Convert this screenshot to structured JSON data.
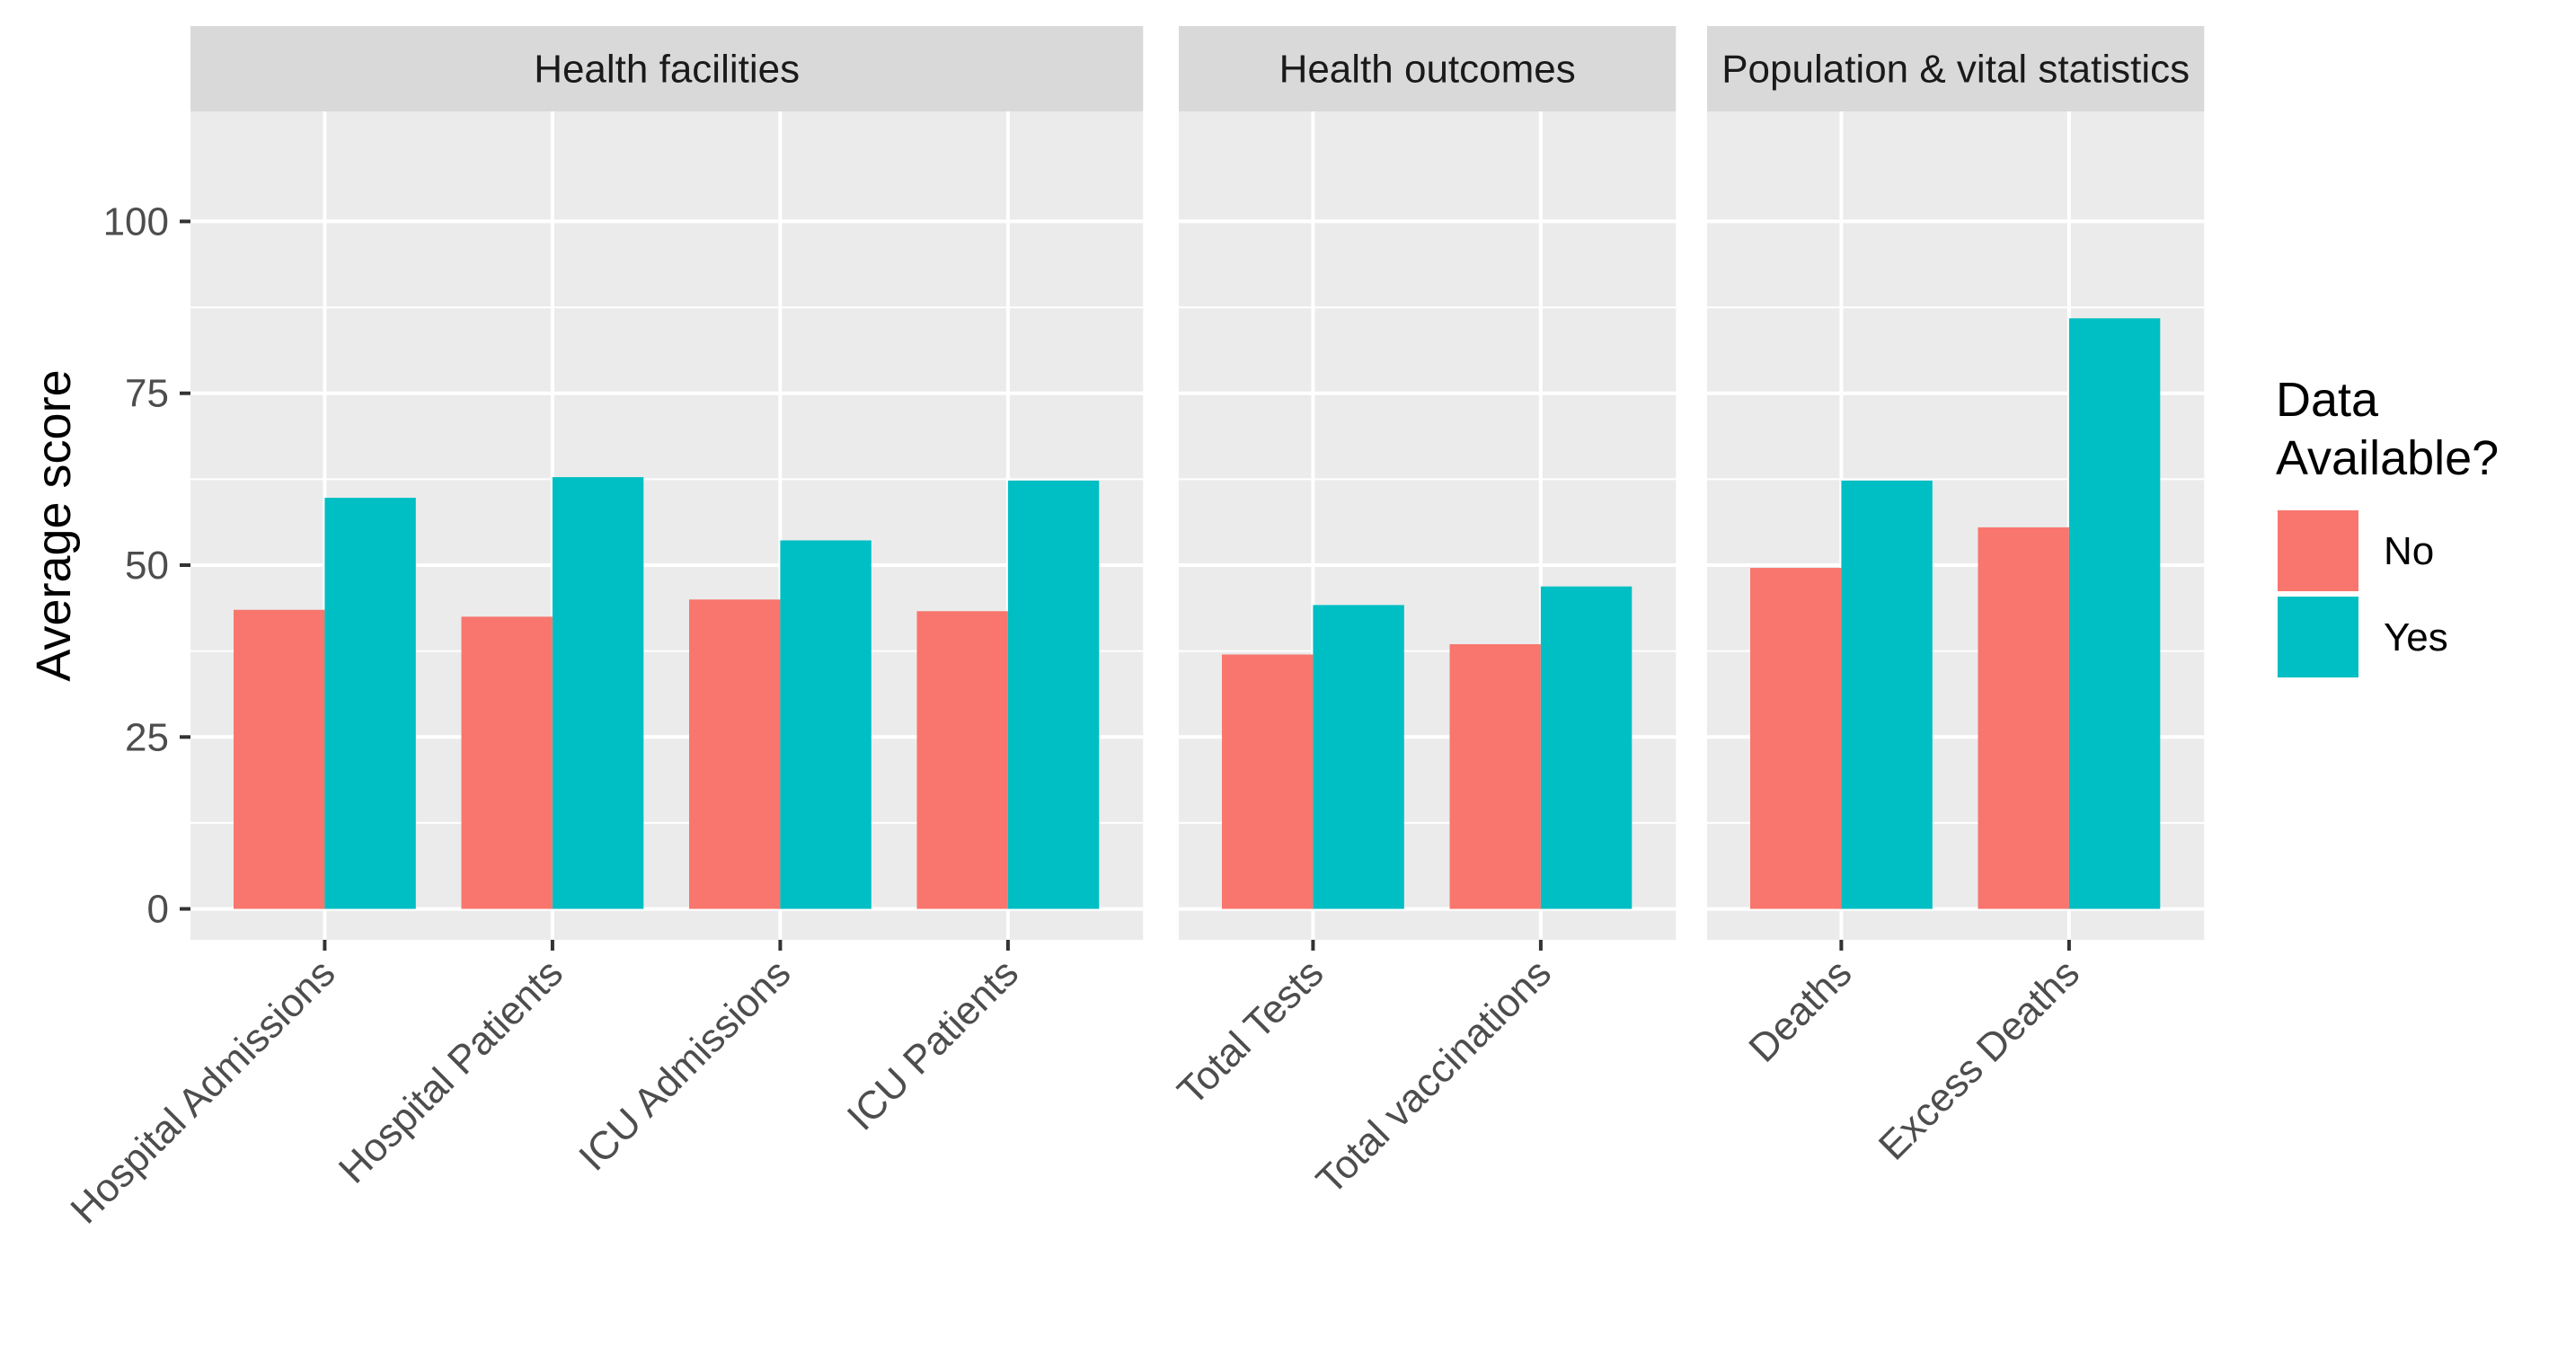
{
  "chart_data": {
    "type": "bar",
    "ylabel": "Average score",
    "xlabel": "",
    "ylim": [
      -4.5,
      116
    ],
    "y_ticks": [
      "0",
      "25",
      "50",
      "75",
      "100"
    ],
    "grid": true,
    "legend": {
      "title_lines": [
        "Data",
        "Available?"
      ],
      "placement": "right",
      "items": [
        {
          "key": "No",
          "label": "No",
          "color": "#F8766D"
        },
        {
          "key": "Yes",
          "label": "Yes",
          "color": "#00BFC4"
        }
      ]
    },
    "series": [
      {
        "name": "No",
        "color": "#F8766D"
      },
      {
        "name": "Yes",
        "color": "#00BFC4"
      }
    ],
    "facets": [
      {
        "title": "Health facilities",
        "categories": [
          "Hospital Admissions",
          "Hospital Patients",
          "ICU Admissions",
          "ICU Patients"
        ],
        "values": {
          "No": [
            43.5,
            42.5,
            45,
            43.3
          ],
          "Yes": [
            59.8,
            62.8,
            53.6,
            62.3
          ]
        }
      },
      {
        "title": "Health outcomes",
        "categories": [
          "Total Tests",
          "Total vaccinations"
        ],
        "values": {
          "No": [
            37,
            38.5
          ],
          "Yes": [
            44.2,
            46.9
          ]
        }
      },
      {
        "title": "Population & vital statistics",
        "categories": [
          "Deaths",
          "Excess Deaths"
        ],
        "values": {
          "No": [
            49.6,
            55.5
          ],
          "Yes": [
            62.3,
            85.9
          ]
        }
      }
    ]
  }
}
